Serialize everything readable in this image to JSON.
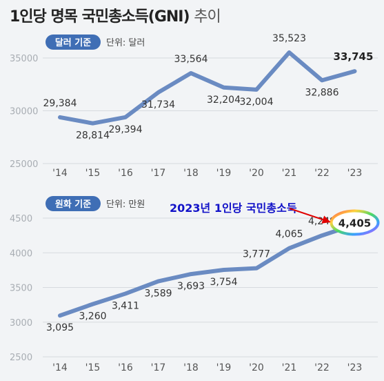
{
  "title": "1인당 명목 국민총소득(GNI)",
  "title_suffix": "추이",
  "colors": {
    "line": "#6a8bc2",
    "badge": "#3f6eb5",
    "grid": "#d6dade",
    "annotation": "#1212c8",
    "arrow": "#e00000"
  },
  "chart_data": [
    {
      "type": "line",
      "badge": "달러 기준",
      "unit": "단위: 달러",
      "categories": [
        "'14",
        "'15",
        "'16",
        "'17",
        "'18",
        "'19",
        "'20",
        "'21",
        "'22",
        "'23"
      ],
      "values": [
        29384,
        28814,
        29394,
        31734,
        33564,
        32204,
        32004,
        35523,
        32886,
        33745
      ],
      "labels": [
        "29,384",
        "28,814",
        "29,394",
        "31,734",
        "33,564",
        "32,204",
        "32,004",
        "35,523",
        "32,886",
        "33,745"
      ],
      "yticks": [
        "35000",
        "30000",
        "25000"
      ],
      "ylim": [
        25000,
        35000
      ],
      "highlight_last": true,
      "grid": true
    },
    {
      "type": "line",
      "badge": "원화 기준",
      "unit": "단위: 만원",
      "categories": [
        "'14",
        "'15",
        "'16",
        "'17",
        "'18",
        "'19",
        "'20",
        "'21",
        "'22",
        "'23"
      ],
      "values": [
        3095,
        3260,
        3411,
        3589,
        3693,
        3754,
        3777,
        4065,
        4249,
        4405
      ],
      "labels": [
        "3,095",
        "3,260",
        "3,411",
        "3,589",
        "3,693",
        "3,754",
        "3,777",
        "4,065",
        "4,249",
        "4,405"
      ],
      "yticks": [
        "4500",
        "4000",
        "3500",
        "3000",
        "2500"
      ],
      "ylim": [
        2500,
        4500
      ],
      "highlight_last": true,
      "grid": true,
      "annotation": "2023년 1인당 국민총소득"
    }
  ]
}
